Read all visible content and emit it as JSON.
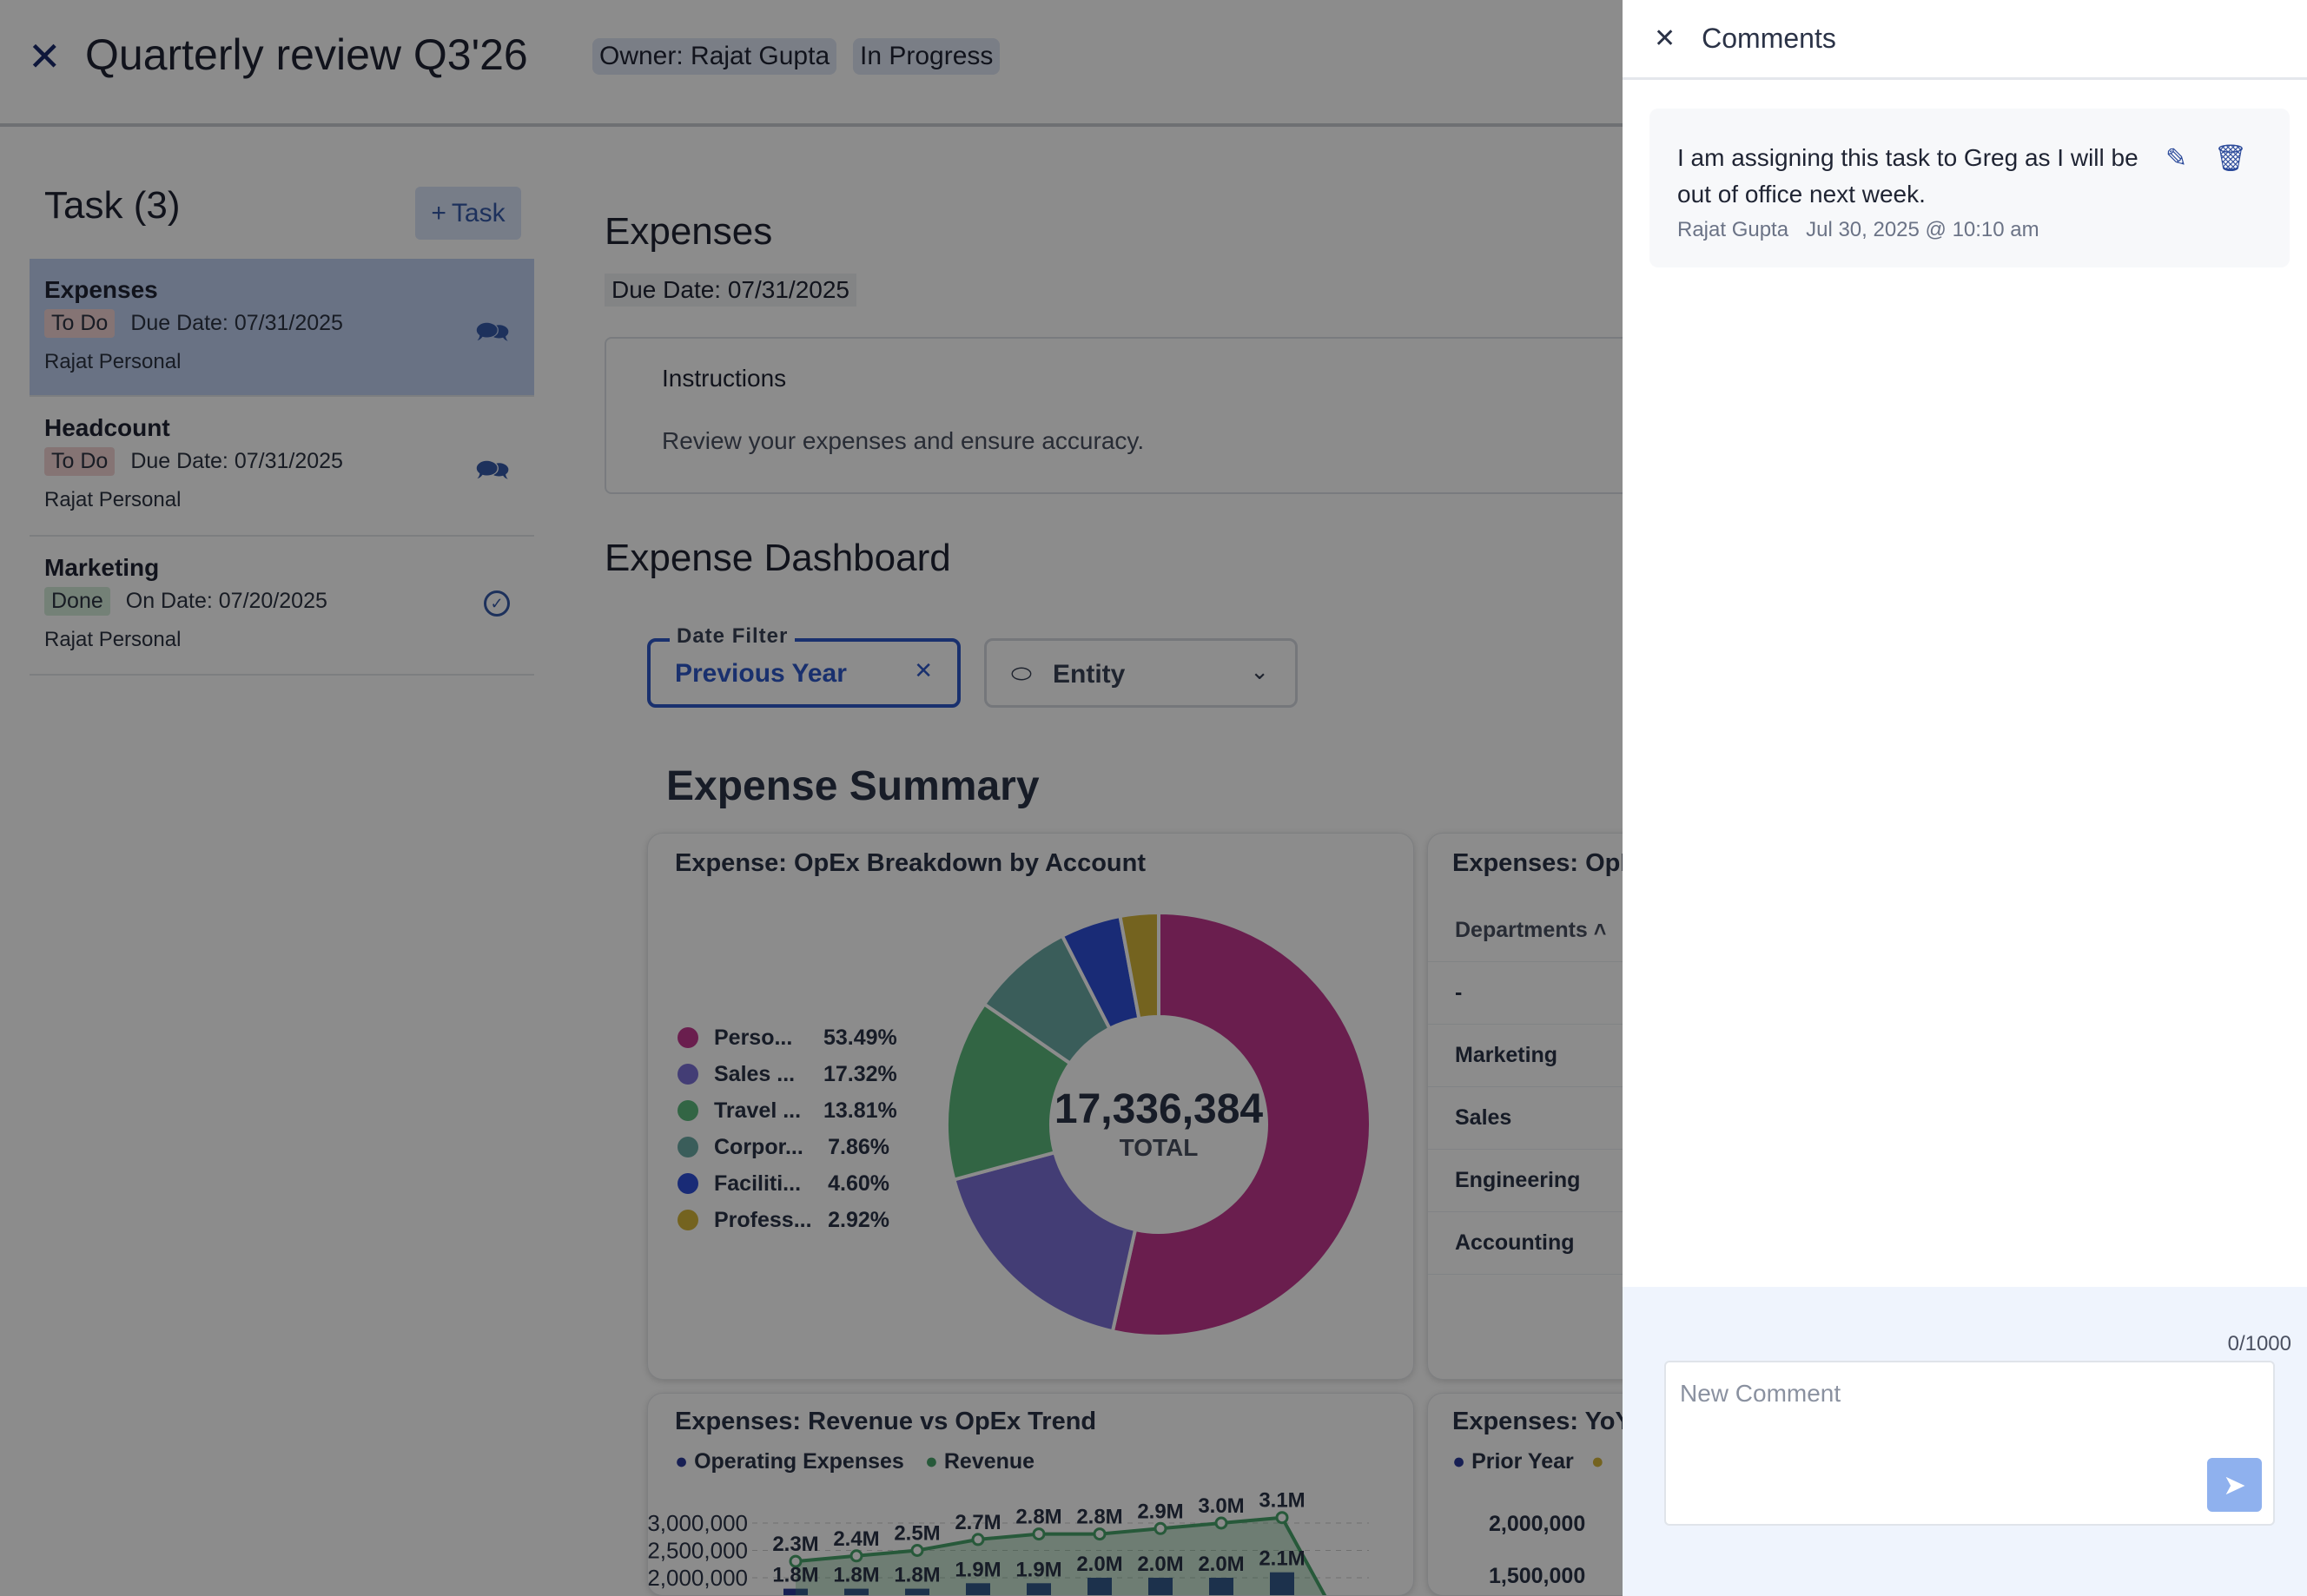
{
  "header": {
    "title": "Quarterly review Q3'26",
    "owner_badge": "Owner: Rajat Gupta",
    "status_badge": "In Progress"
  },
  "tasks": {
    "heading": "Task (3)",
    "add_label": "Task",
    "items": [
      {
        "name": "Expenses",
        "status": "To Do",
        "date": "Due Date: 07/31/2025",
        "owner": "Rajat Personal",
        "icon": "comments-icon"
      },
      {
        "name": "Headcount",
        "status": "To Do",
        "date": "Due Date: 07/31/2025",
        "owner": "Rajat Personal",
        "icon": "comments-icon"
      },
      {
        "name": "Marketing",
        "status": "Done",
        "date": "On Date: 07/20/2025",
        "owner": "Rajat Personal",
        "icon": "check-circle-icon"
      }
    ]
  },
  "main": {
    "title": "Expenses",
    "due": "Due Date: 07/31/2025",
    "instructions_label": "Instructions",
    "instructions_text": "Review your expenses and ensure accuracy.",
    "dashboard_title": "Expense Dashboard",
    "date_filter": {
      "label": "Date Filter",
      "value": "Previous Year"
    },
    "entity_filter": {
      "placeholder": "Entity"
    },
    "summary_title": "Expense Summary"
  },
  "colors": {
    "accent": "#2f58c8",
    "todo": "#f3d3d3",
    "done": "#d4ecd9"
  },
  "chart_data": [
    {
      "type": "pie",
      "title": "Expense: OpEx Breakdown by Account",
      "center_value": "17,336,384",
      "center_label": "TOTAL",
      "slices": [
        {
          "label": "Perso...",
          "value": 53.49,
          "color": "#c2378f"
        },
        {
          "label": "Sales ...",
          "value": 17.32,
          "color": "#7b6fd6"
        },
        {
          "label": "Travel ...",
          "value": 13.81,
          "color": "#5cb87c"
        },
        {
          "label": "Corpor...",
          "value": 7.86,
          "color": "#6aa9a5"
        },
        {
          "label": "Faciliti...",
          "value": 4.6,
          "color": "#2f4fd8"
        },
        {
          "label": "Profess...",
          "value": 2.92,
          "color": "#d4b43a"
        }
      ],
      "value_labels": [
        "53.49%",
        "17.32%",
        "13.81%",
        "7.86%",
        "4.60%",
        "2.92%"
      ]
    },
    {
      "type": "table",
      "title": "Expenses: OpE",
      "columns": [
        "Departments"
      ],
      "rows": [
        "-",
        "Marketing",
        "Sales",
        "Engineering",
        "Accounting"
      ]
    },
    {
      "type": "bar",
      "title": "Expenses: Revenue vs OpEx Trend",
      "series": [
        {
          "name": "Operating Expenses",
          "color": "#2a3a9a",
          "values": [
            1.8,
            1.8,
            1.8,
            1.9,
            1.9,
            2.0,
            2.0,
            2.0,
            2.1
          ],
          "labels": [
            "1.8M",
            "1.8M",
            "1.8M",
            "1.9M",
            "1.9M",
            "2.0M",
            "2.0M",
            "2.0M",
            "2.1M"
          ]
        },
        {
          "name": "Revenue",
          "color": "#48a36a",
          "values": [
            2.3,
            2.4,
            2.5,
            2.7,
            2.8,
            2.8,
            2.9,
            3.0,
            3.1
          ],
          "labels": [
            "2.3M",
            "2.4M",
            "2.5M",
            "2.7M",
            "2.8M",
            "2.8M",
            "2.9M",
            "3.0M",
            "3.1M"
          ]
        }
      ],
      "yticks": [
        "3,000,000",
        "2,500,000",
        "2,000,000"
      ],
      "grid": true,
      "legend": "top-left"
    },
    {
      "type": "bar",
      "title": "Expenses: YoY",
      "series": [
        {
          "name": "Prior Year",
          "color": "#2a3a9a"
        },
        {
          "name": "",
          "color": "#d4b43a"
        }
      ],
      "yticks": [
        "2,000,000",
        "1,500,000"
      ]
    }
  ],
  "comments": {
    "title": "Comments",
    "items": [
      {
        "text": "I am assigning this task to Greg as I will be out of office next week.",
        "author": "Rajat Gupta",
        "time": "Jul 30, 2025 @ 10:10 am"
      }
    ],
    "counter": "0/1000",
    "placeholder": "New Comment"
  }
}
